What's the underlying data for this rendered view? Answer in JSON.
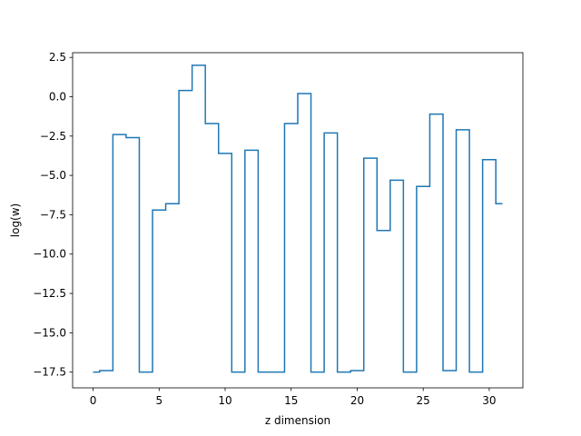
{
  "chart_data": {
    "type": "line",
    "drawstyle": "steps-mid",
    "title": "",
    "xlabel": "z dimension",
    "ylabel": "log(w)",
    "xlim": [
      -1.55,
      32.55
    ],
    "ylim": [
      -18.5,
      2.8
    ],
    "xticks": [
      0,
      5,
      10,
      15,
      20,
      25,
      30
    ],
    "xtick_labels": [
      "0",
      "5",
      "10",
      "15",
      "20",
      "25",
      "30"
    ],
    "yticks": [
      2.5,
      0.0,
      -2.5,
      -5.0,
      -7.5,
      -10.0,
      -12.5,
      -15.0,
      -17.5
    ],
    "ytick_labels": [
      "2.5",
      "0.0",
      "−2.5",
      "−5.0",
      "−7.5",
      "−10.0",
      "−12.5",
      "−15.0",
      "−17.5"
    ],
    "grid": false,
    "legend": "none",
    "series": [
      {
        "color": "#1f77b4",
        "x": [
          0,
          1,
          2,
          3,
          4,
          5,
          6,
          7,
          8,
          9,
          10,
          11,
          12,
          13,
          14,
          15,
          16,
          17,
          18,
          19,
          20,
          21,
          22,
          23,
          24,
          25,
          26,
          27,
          28,
          29,
          30,
          31
        ],
        "values": [
          -17.5,
          -17.4,
          -2.4,
          -2.6,
          -17.5,
          -7.2,
          -6.8,
          0.4,
          2.0,
          -1.7,
          -3.6,
          -17.5,
          -3.4,
          -17.5,
          -17.5,
          -1.7,
          0.2,
          -17.5,
          -2.3,
          -17.5,
          -17.4,
          -3.9,
          -8.5,
          -5.3,
          -17.5,
          -5.7,
          -1.1,
          -17.4,
          -2.1,
          -17.5,
          -4.0,
          -6.8
        ]
      }
    ]
  }
}
